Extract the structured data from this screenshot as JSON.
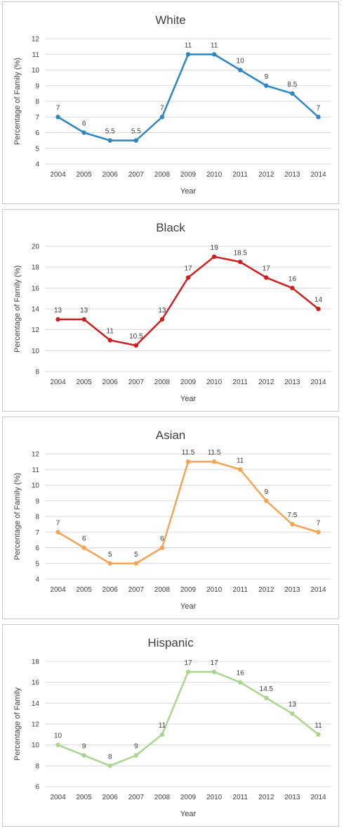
{
  "chart_data": [
    {
      "type": "line",
      "title": "White",
      "xlabel": "Year",
      "ylabel": "Percentage of Family (%)",
      "categories": [
        "2004",
        "2005",
        "2006",
        "2007",
        "2008",
        "2009",
        "2010",
        "2011",
        "2012",
        "2013",
        "2014"
      ],
      "values": [
        7,
        6,
        5.5,
        5.5,
        7,
        11,
        11,
        10,
        9,
        8.5,
        7
      ],
      "data_labels": [
        "7",
        "6",
        "5.5",
        "5.5",
        "7",
        "11",
        "11",
        "10",
        "9",
        "8.5",
        "7"
      ],
      "ylim": [
        4,
        12
      ],
      "yticks": [
        "4",
        "5",
        "6",
        "7",
        "8",
        "9",
        "10",
        "11",
        "12"
      ],
      "color": "#2e86c1",
      "grid": true,
      "legend": "none"
    },
    {
      "type": "line",
      "title": "Black",
      "xlabel": "Year",
      "ylabel": "Percentage of Family (%)",
      "categories": [
        "2004",
        "2005",
        "2006",
        "2007",
        "2008",
        "2009",
        "2010",
        "2011",
        "2012",
        "2013",
        "2014"
      ],
      "values": [
        13,
        13,
        11,
        10.5,
        13,
        17,
        19,
        18.5,
        17,
        16,
        14
      ],
      "data_labels": [
        "13",
        "13",
        "11",
        "10.5",
        "13",
        "17",
        "19",
        "18.5",
        "17",
        "16",
        "14"
      ],
      "ylim": [
        8,
        20
      ],
      "yticks": [
        "8",
        "10",
        "12",
        "14",
        "16",
        "18",
        "20"
      ],
      "color": "#cc1f1f",
      "grid": true,
      "legend": "none"
    },
    {
      "type": "line",
      "title": "Asian",
      "xlabel": "Year",
      "ylabel": "Percentage of Family (%)",
      "categories": [
        "2004",
        "2005",
        "2006",
        "2007",
        "2008",
        "2009",
        "2010",
        "2011",
        "2012",
        "2013",
        "2014"
      ],
      "values": [
        7,
        6,
        5,
        5,
        6,
        11.5,
        11.5,
        11,
        9,
        7.5,
        7
      ],
      "data_labels": [
        "7",
        "6",
        "5",
        "5",
        "6",
        "11.5",
        "11.5",
        "11",
        "9",
        "7.5",
        "7"
      ],
      "ylim": [
        4,
        12
      ],
      "yticks": [
        "4",
        "5",
        "6",
        "7",
        "8",
        "9",
        "10",
        "11",
        "12"
      ],
      "color": "#f5a455",
      "grid": true,
      "legend": "none"
    },
    {
      "type": "line",
      "title": "Hispanic",
      "xlabel": "Year",
      "ylabel": "Percentage of Family",
      "categories": [
        "2004",
        "2005",
        "2006",
        "2007",
        "2008",
        "2009",
        "2010",
        "2011",
        "2012",
        "2013",
        "2014"
      ],
      "values": [
        10,
        9,
        8,
        9,
        11,
        17,
        17,
        16,
        14.5,
        13,
        11
      ],
      "data_labels": [
        "10",
        "9",
        "8",
        "9",
        "11",
        "17",
        "17",
        "16",
        "14.5",
        "13",
        "11"
      ],
      "ylim": [
        6,
        18
      ],
      "yticks": [
        "6",
        "8",
        "10",
        "12",
        "14",
        "16",
        "18"
      ],
      "color": "#a9d58f",
      "grid": true,
      "legend": "none"
    }
  ]
}
